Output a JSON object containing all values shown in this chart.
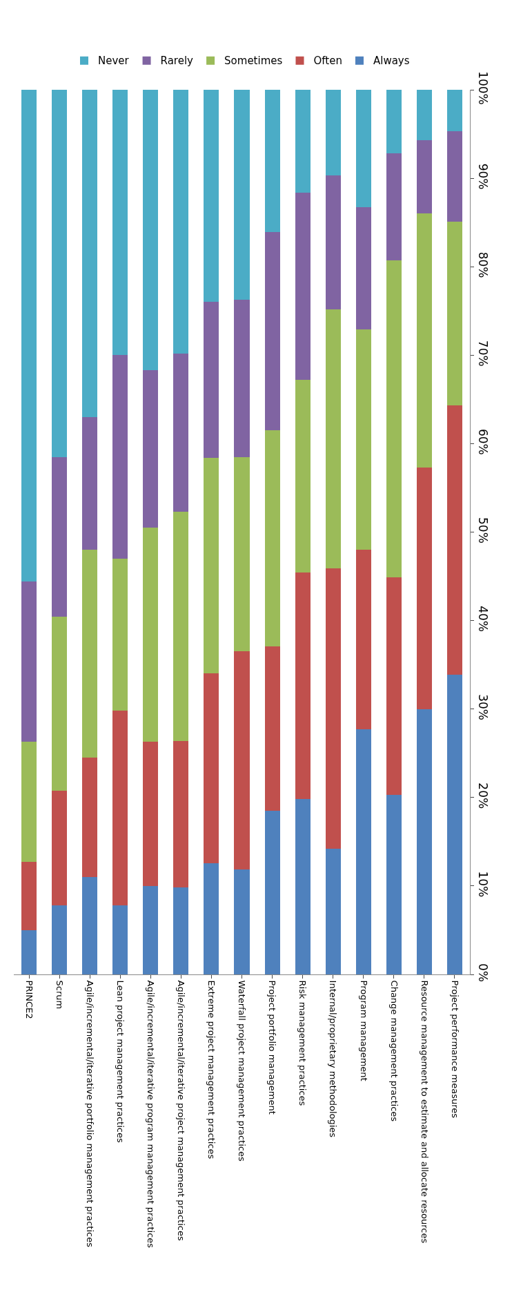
{
  "chart_data": {
    "type": "bar",
    "stacked": true,
    "categories": [
      "PRINCE2",
      "Scrum",
      "Agile/incremental/iterative portfolio management practices",
      "Lean project management practices",
      "Agile/incremental/iterative program management practices",
      "Agile/incremental/iterative project management practices",
      "Extreme project management practices",
      "Waterfall project management practices",
      "Project portfolio management",
      "Risk management practices",
      "Internal/proprietary methodologies",
      "Program management",
      "Change management practices",
      "Resource management to estimate and allocate resources",
      "Project performance measures"
    ],
    "series": [
      {
        "name": "Always",
        "color": "#4f81bd",
        "values": [
          5,
          7.8,
          11,
          7.8,
          10,
          9.8,
          12.6,
          11.9,
          18.5,
          19.8,
          14.2,
          27.7,
          20.3,
          30,
          33.9
        ]
      },
      {
        "name": "Often",
        "color": "#c0504d",
        "values": [
          7.7,
          13,
          13.5,
          22,
          16.3,
          16.6,
          21.4,
          24.6,
          18.6,
          25.6,
          31.7,
          20.3,
          24.6,
          27.3,
          30.4
        ]
      },
      {
        "name": "Sometimes",
        "color": "#9bbb59",
        "values": [
          13.6,
          19.6,
          23.5,
          17.2,
          24.2,
          25.9,
          24.4,
          22,
          24.4,
          21.8,
          29.3,
          24.9,
          35.8,
          28.7,
          20.8
        ]
      },
      {
        "name": "Rarely",
        "color": "#8064a2",
        "values": [
          18.1,
          18.1,
          15,
          23,
          17.8,
          17.9,
          17.6,
          17.8,
          22.4,
          21.2,
          15.1,
          13.8,
          12.1,
          8.3,
          10.2
        ]
      },
      {
        "name": "Never",
        "color": "#4bacc6",
        "values": [
          55.6,
          41.5,
          37,
          30,
          31.7,
          29.8,
          24,
          23.7,
          16.1,
          11.6,
          9.7,
          13.3,
          7.2,
          5.7,
          4.7
        ]
      }
    ],
    "ylim": [
      0,
      100
    ],
    "yticks": [
      {
        "value": 0,
        "label": "0%"
      },
      {
        "value": 10,
        "label": "10%"
      },
      {
        "value": 20,
        "label": "20%"
      },
      {
        "value": 30,
        "label": "30%"
      },
      {
        "value": 40,
        "label": "40%"
      },
      {
        "value": 50,
        "label": "50%"
      },
      {
        "value": 60,
        "label": "60%"
      },
      {
        "value": 70,
        "label": "70%"
      },
      {
        "value": 80,
        "label": "80%"
      },
      {
        "value": 90,
        "label": "90%"
      },
      {
        "value": 100,
        "label": "100%"
      }
    ],
    "grid": false,
    "legend": "top"
  }
}
